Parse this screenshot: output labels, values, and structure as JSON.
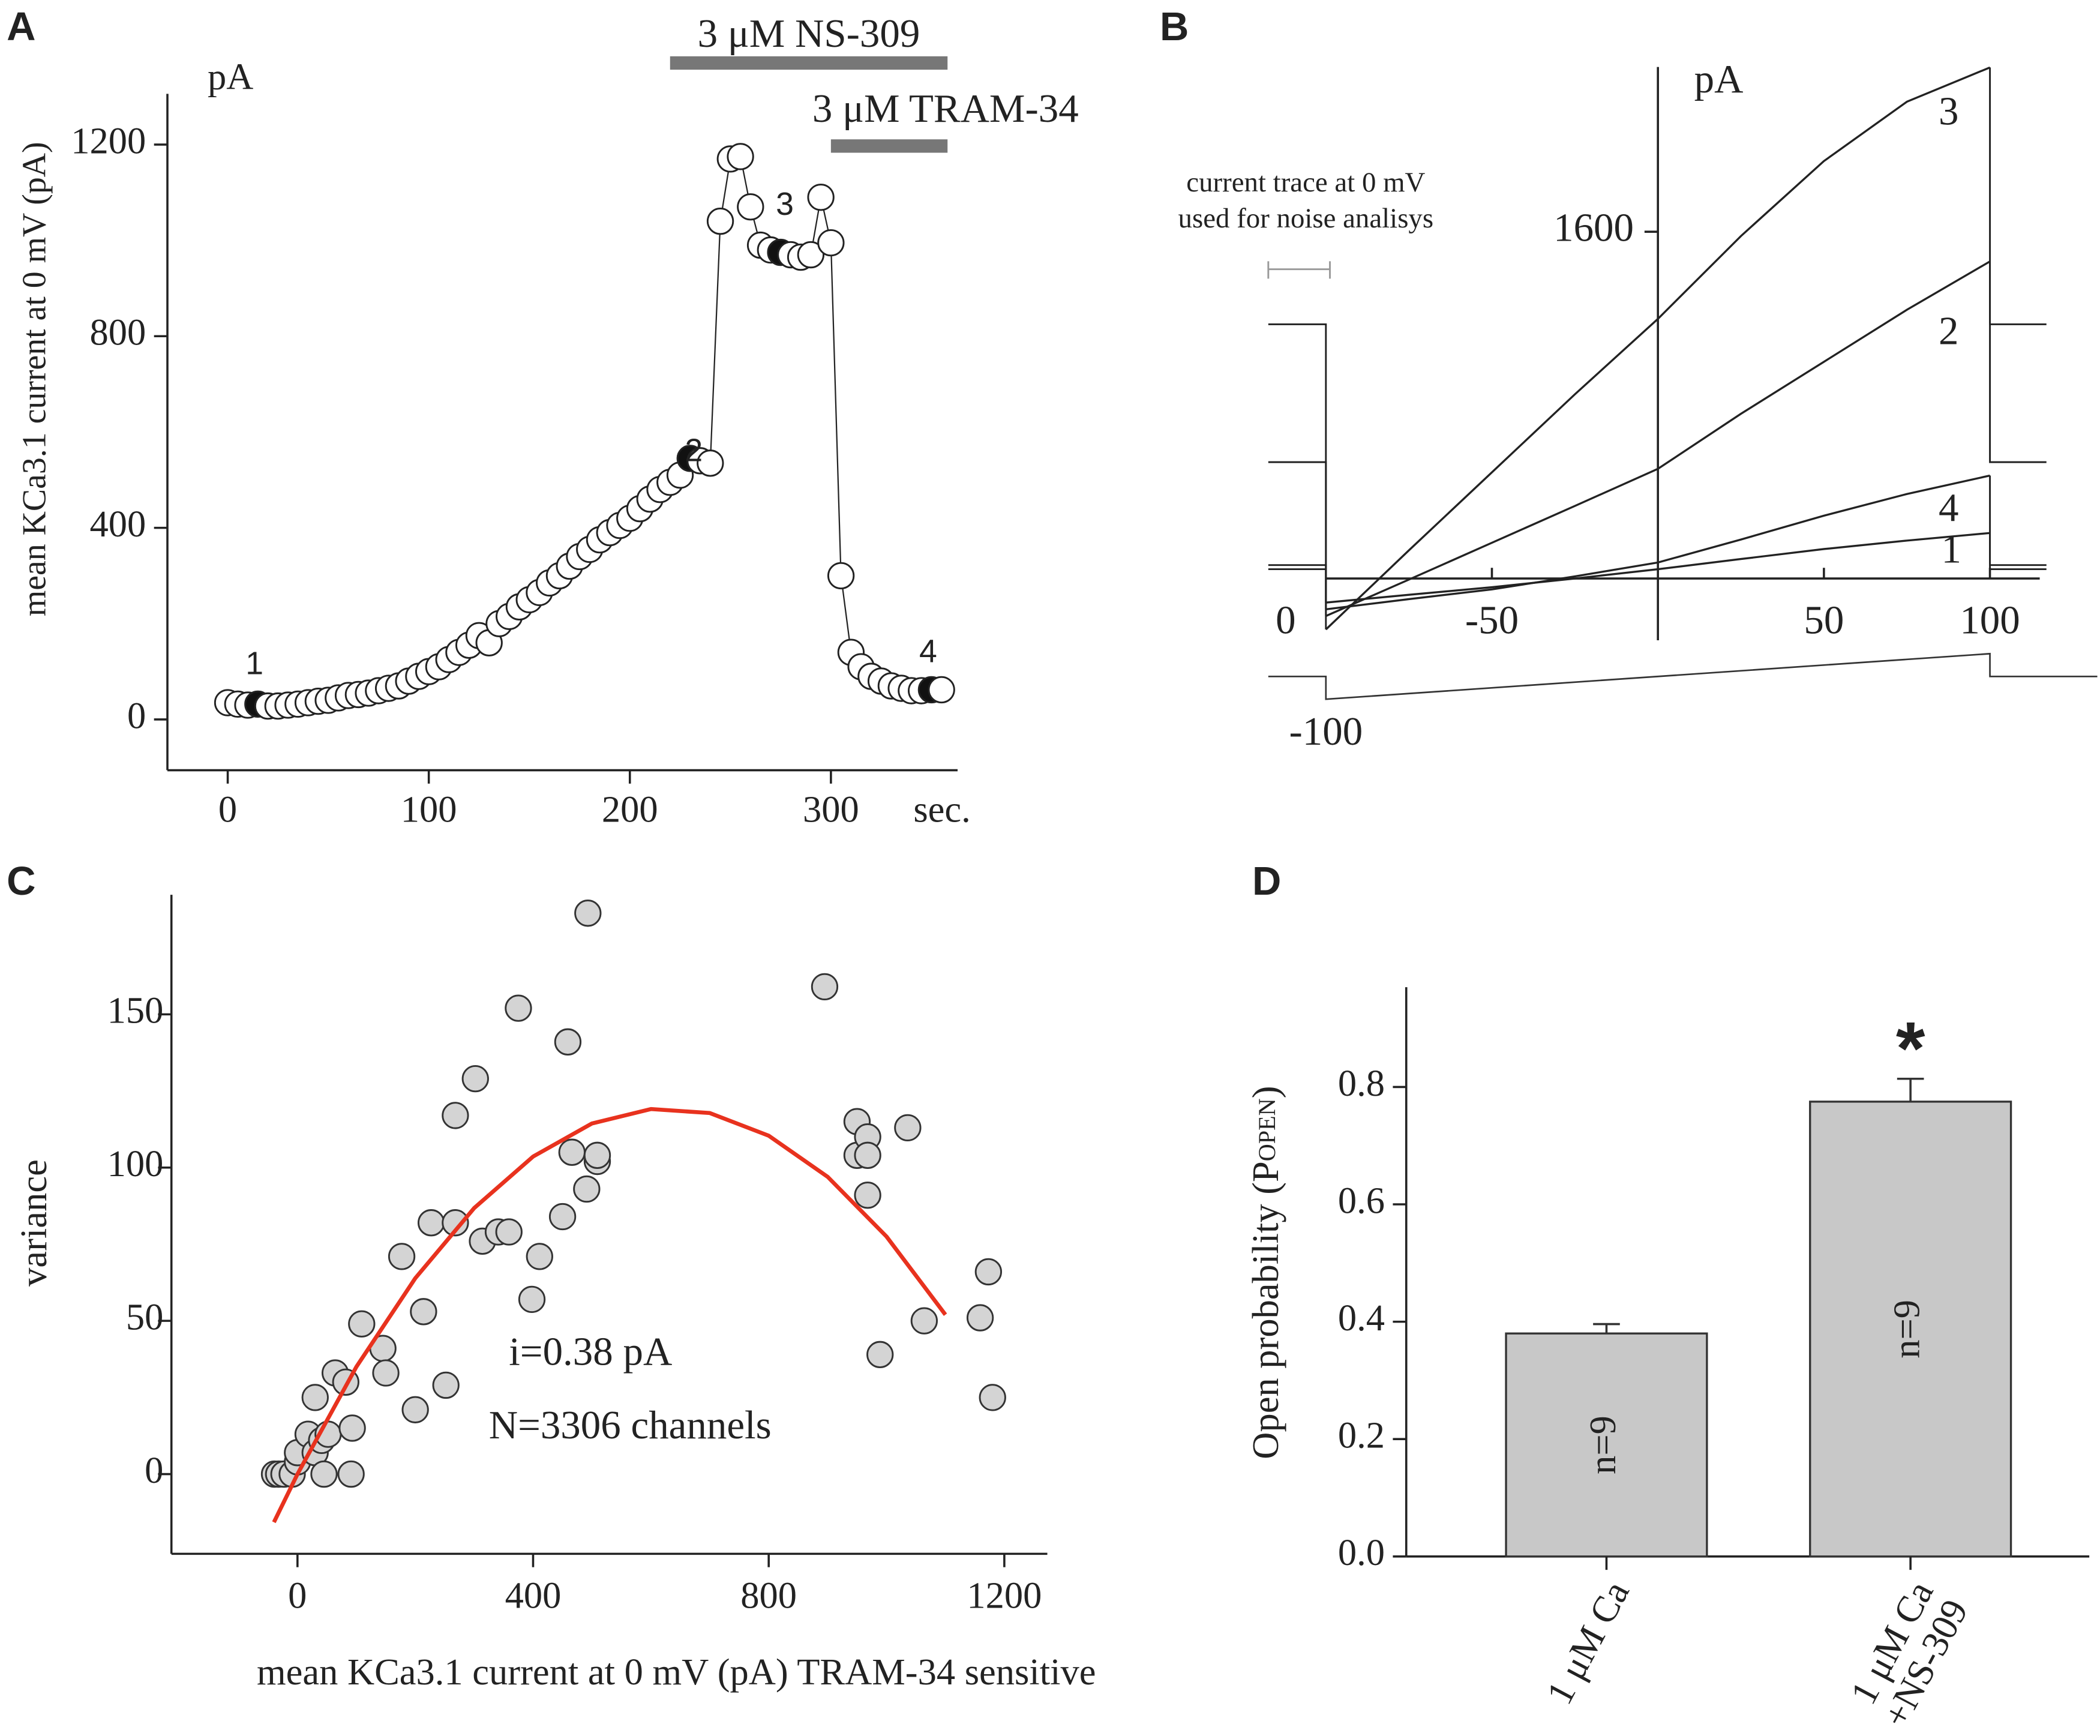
{
  "chart_data": [
    {
      "panel": "A",
      "type": "line",
      "markers": true,
      "ylabel": "mean KCa3.1 current at 0 mV (pA)",
      "unit_label": "pA",
      "xlabel": "sec.",
      "x": [
        0,
        5,
        10,
        15,
        20,
        25,
        30,
        35,
        40,
        45,
        50,
        55,
        60,
        65,
        70,
        75,
        80,
        85,
        90,
        95,
        100,
        105,
        110,
        115,
        120,
        125,
        130,
        135,
        140,
        145,
        150,
        155,
        160,
        165,
        170,
        175,
        180,
        185,
        190,
        195,
        200,
        205,
        210,
        215,
        220,
        225,
        230,
        235,
        240,
        245,
        250,
        255,
        260,
        265,
        270,
        275,
        280,
        285,
        290,
        295,
        300,
        305,
        310,
        315,
        320,
        325,
        330,
        335,
        340,
        345,
        350,
        355
      ],
      "values": [
        35,
        32,
        30,
        32,
        28,
        28,
        30,
        32,
        35,
        38,
        40,
        45,
        50,
        52,
        55,
        60,
        65,
        70,
        80,
        90,
        100,
        110,
        125,
        140,
        155,
        175,
        160,
        200,
        215,
        235,
        250,
        265,
        285,
        300,
        320,
        340,
        355,
        375,
        390,
        405,
        420,
        440,
        460,
        480,
        495,
        510,
        545,
        540,
        535,
        1040,
        1170,
        1175,
        1070,
        990,
        980,
        975,
        970,
        965,
        970,
        1090,
        995,
        300,
        140,
        110,
        90,
        80,
        70,
        65,
        60,
        60,
        62,
        62
      ],
      "point_colors": [
        "#fff",
        "#fff",
        "#fff",
        "#111",
        "#fff",
        "#fff",
        "#fff",
        "#fff",
        "#fff",
        "#fff",
        "#fff",
        "#fff",
        "#fff",
        "#fff",
        "#fff",
        "#fff",
        "#fff",
        "#fff",
        "#fff",
        "#fff",
        "#fff",
        "#fff",
        "#fff",
        "#fff",
        "#fff",
        "#fff",
        "#fff",
        "#fff",
        "#fff",
        "#fff",
        "#fff",
        "#fff",
        "#fff",
        "#fff",
        "#fff",
        "#fff",
        "#fff",
        "#fff",
        "#fff",
        "#fff",
        "#fff",
        "#fff",
        "#fff",
        "#fff",
        "#fff",
        "#fff",
        "#111",
        "#fff",
        "#fff",
        "#fff",
        "#fff",
        "#fff",
        "#fff",
        "#fff",
        "#fff",
        "#111",
        "#fff",
        "#fff",
        "#fff",
        "#fff",
        "#fff",
        "#fff",
        "#fff",
        "#fff",
        "#fff",
        "#fff",
        "#fff",
        "#fff",
        "#fff",
        "#fff",
        "#111",
        "#fff"
      ],
      "color": "#222",
      "annotations": [
        "1",
        "2",
        "3",
        "4"
      ],
      "bands": [
        {
          "label": "3 μM NS-309",
          "start": 220,
          "end": 358
        },
        {
          "label": "3 μM TRAM-34",
          "start": 300,
          "end": 358
        }
      ],
      "band_color": "#777",
      "xlim": [
        -30,
        363
      ],
      "ylim": [
        -106,
        1306
      ],
      "xticks": [
        0,
        100,
        200,
        300
      ],
      "yticks": [
        0,
        400,
        800,
        1200
      ]
    },
    {
      "panel": "B",
      "type": "line",
      "unit_label": "pA",
      "note": [
        "current trace at 0 mV",
        "used for noise analisys"
      ],
      "series": [
        {
          "name": "1",
          "color": "#222",
          "x": [
            -100,
            -75,
            -50,
            -25,
            0,
            25,
            50,
            75,
            100
          ],
          "values": [
            -111,
            -75,
            -40,
            0,
            43,
            90,
            136,
            175,
            210
          ],
          "holding": 43
        },
        {
          "name": "2",
          "color": "#222",
          "x": [
            -100,
            -75,
            -50,
            -25,
            0,
            25,
            50,
            75,
            100
          ],
          "values": [
            -173,
            -5,
            165,
            335,
            506,
            760,
            1000,
            1240,
            1463
          ],
          "holding": 537
        },
        {
          "name": "3",
          "color": "#222",
          "x": [
            -100,
            -75,
            -50,
            -25,
            0,
            25,
            50,
            75,
            100
          ],
          "values": [
            -235,
            130,
            490,
            850,
            1198,
            1580,
            1926,
            2200,
            2358
          ],
          "holding": 1173
        },
        {
          "name": "4",
          "color": "#222",
          "x": [
            -100,
            -75,
            -50,
            -25,
            0,
            25,
            50,
            75,
            100
          ],
          "values": [
            -142,
            -95,
            -50,
            10,
            74,
            180,
            290,
            390,
            475
          ],
          "holding": 62
        }
      ],
      "protocol": [
        0,
        -100,
        100
      ],
      "xlim": [
        -100,
        115
      ],
      "ylim": [
        -285,
        2360
      ],
      "xticks": [
        -50,
        50,
        100
      ],
      "yticks": [
        1600
      ]
    },
    {
      "panel": "C",
      "type": "scatter",
      "ylabel": "variance",
      "xlabel": "mean KCa3.1 current at 0 mV (pA) TRAM-34 sensitive",
      "annotations": [
        "i=0.38 pA",
        "N=3306 channels"
      ],
      "x": [
        -39,
        -32,
        -23,
        -9,
        0,
        0,
        18,
        30,
        41,
        30,
        52,
        45,
        64,
        82,
        93,
        91,
        109,
        145,
        150,
        177,
        200,
        214,
        227,
        252,
        268,
        268,
        302,
        314,
        341,
        359,
        375,
        398,
        411,
        450,
        459,
        466,
        491,
        493,
        509,
        509,
        895,
        950,
        950,
        968,
        968,
        968,
        989,
        1036,
        1064,
        1159,
        1173,
        1180
      ],
      "values": [
        0,
        0,
        0,
        0,
        4,
        7,
        13,
        7,
        11,
        25,
        13,
        0,
        33,
        30,
        15,
        0,
        49,
        41,
        33,
        71,
        21,
        53,
        82,
        29,
        82,
        117,
        129,
        76,
        79,
        79,
        152,
        57,
        71,
        84,
        141,
        105,
        93,
        183,
        102,
        104,
        159,
        104,
        115,
        110,
        104,
        91,
        39,
        113,
        50,
        51,
        66,
        25
      ],
      "color": "#d4d4d4",
      "fit": {
        "color": "#e8321e",
        "x": [
          -40,
          0,
          100,
          200,
          300,
          400,
          500,
          600,
          700,
          800,
          900,
          1000,
          1100
        ],
        "values": [
          -15.7,
          0,
          35,
          63.9,
          86.8,
          103.6,
          114.4,
          119.1,
          117.8,
          110.4,
          97,
          77.5,
          52
        ]
      },
      "xlim": [
        -214,
        1273
      ],
      "ylim": [
        -26,
        189
      ],
      "xticks": [
        0,
        400,
        800,
        1200
      ],
      "yticks": [
        0,
        50,
        100,
        150
      ]
    },
    {
      "panel": "D",
      "type": "bar",
      "ylabel": [
        "Open probability (P",
        "OPEN",
        ")"
      ],
      "categories": [
        [
          "1 μM Ca"
        ],
        [
          "1 μM Ca",
          "+NS-309"
        ]
      ],
      "values": [
        0.38,
        0.775
      ],
      "errors": [
        0.016,
        0.039
      ],
      "bar_labels": [
        "n=9",
        "n=9"
      ],
      "annotation": "*",
      "color": "#c8c8c8",
      "ylim": [
        0,
        0.97
      ],
      "yticks": [
        {
          "value": 0,
          "label": "0.0"
        },
        0.2,
        0.4,
        0.6,
        0.8
      ]
    }
  ]
}
